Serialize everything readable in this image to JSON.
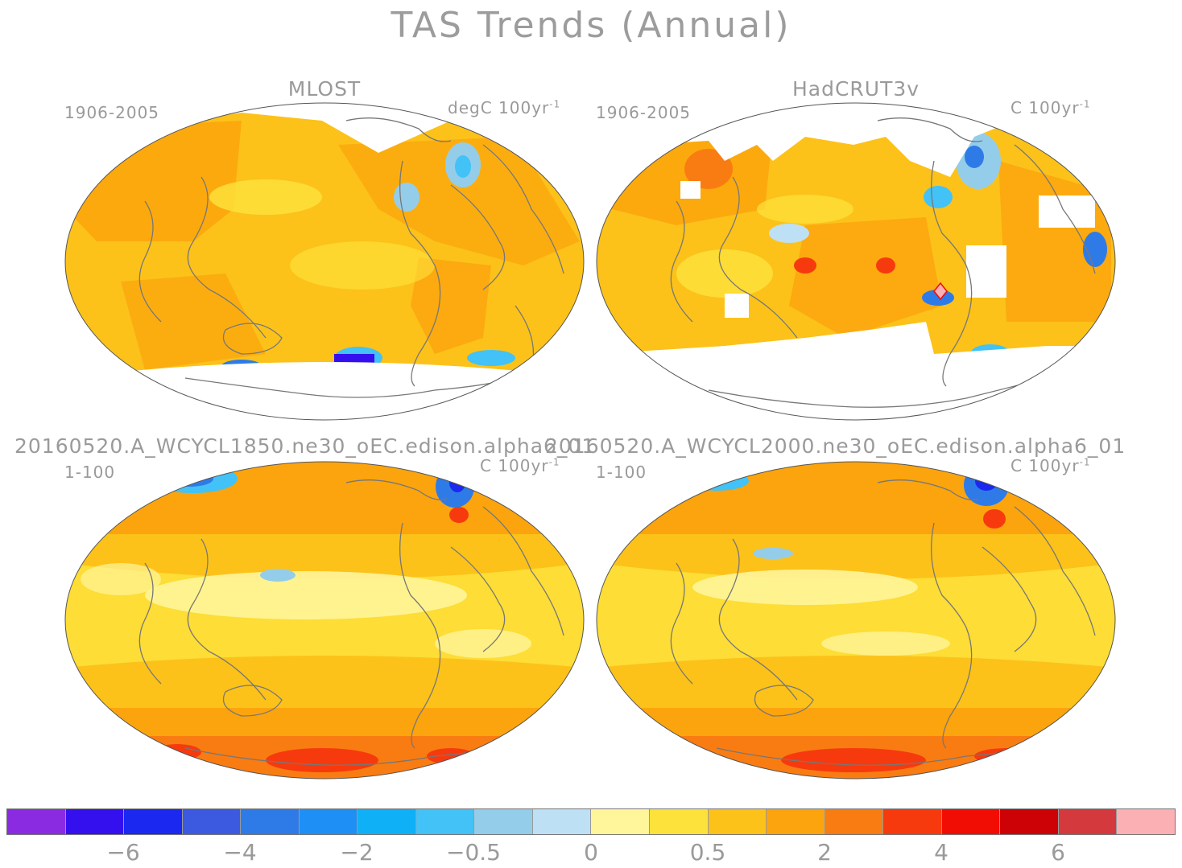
{
  "title": "TAS Trends (Annual)",
  "panels": [
    {
      "title": "MLOST",
      "period": "1906-2005",
      "units": "degC 100yr",
      "exponent": "-1"
    },
    {
      "title": "HadCRUT3v",
      "period": "1906-2005",
      "units": "C 100yr",
      "exponent": "-1"
    },
    {
      "title": "20160520.A_WCYCL1850.ne30_oEC.edison.alpha6_01",
      "period": "1-100",
      "units": "C 100yr",
      "exponent": "-1"
    },
    {
      "title": "20160520.A_WCYCL2000.ne30_oEC.edison.alpha6_01",
      "period": "1-100",
      "units": "C 100yr",
      "exponent": "-1"
    }
  ],
  "colorbar": {
    "colors": [
      "#8a2be2",
      "#3510ef",
      "#1a28f0",
      "#3c5ae0",
      "#2e7be8",
      "#1e90f5",
      "#0fb0f5",
      "#42c2f6",
      "#94cdea",
      "#bde0f5",
      "#fff59a",
      "#fde23c",
      "#fcc21a",
      "#fba40d",
      "#f97c12",
      "#f63a0e",
      "#f20d04",
      "#cc0206",
      "#d43a3d",
      "#fbb0b4"
    ],
    "tick_labels": [
      "−6",
      "−4",
      "−2",
      "−0.5",
      "0",
      "0.5",
      "2",
      "4",
      "6"
    ]
  }
}
